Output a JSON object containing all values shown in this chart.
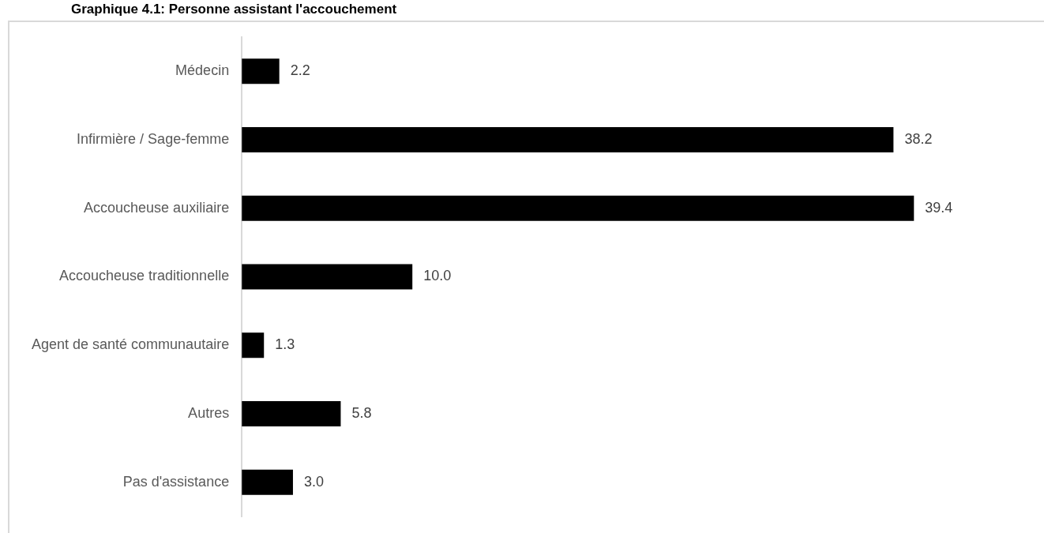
{
  "chart_data": {
    "type": "bar",
    "orientation": "horizontal",
    "title": "Graphique 4.1: Personne assistant l'accouchement",
    "categories": [
      "Médecin",
      "Infirmière / Sage-femme",
      "Accoucheuse auxiliaire",
      "Accoucheuse traditionnelle",
      "Agent de santé communautaire",
      "Autres",
      "Pas d'assistance"
    ],
    "values": [
      2.2,
      38.2,
      39.4,
      10.0,
      1.3,
      5.8,
      3.0
    ],
    "value_labels": [
      "2.2",
      "38.2",
      "39.4",
      "10.0",
      "1.3",
      "5.8",
      "3.0"
    ],
    "color": "#000000",
    "legend": false
  }
}
